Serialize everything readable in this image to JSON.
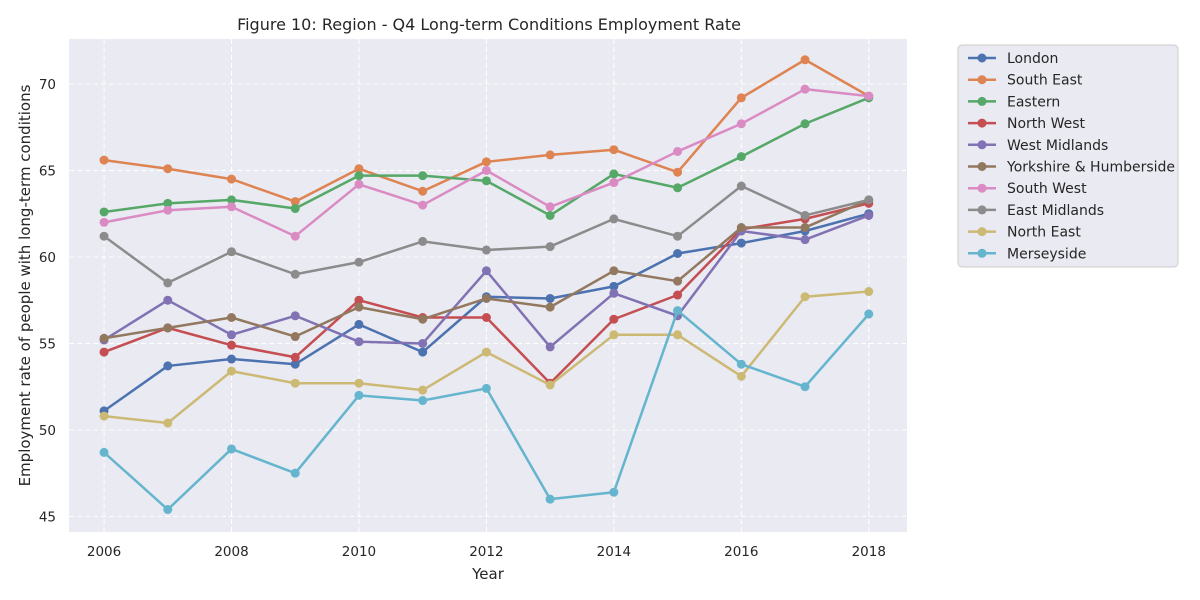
{
  "chart_data": {
    "type": "line",
    "title": "Figure 10: Region - Q4 Long-term Conditions Employment Rate",
    "xlabel": "Year",
    "ylabel": "Employment rate of people with long-term conditions",
    "x": [
      2006,
      2007,
      2008,
      2009,
      2010,
      2011,
      2012,
      2013,
      2014,
      2015,
      2016,
      2017,
      2018
    ],
    "xticks": [
      2006,
      2008,
      2010,
      2012,
      2014,
      2016,
      2018
    ],
    "yticks": [
      45,
      50,
      55,
      60,
      65,
      70
    ],
    "xlim": [
      2005.45,
      2018.6
    ],
    "ylim": [
      44.1,
      72.6
    ],
    "grid": true,
    "legend_position": "outside-right",
    "background_color": "#EAEAF2",
    "series": [
      {
        "name": "London",
        "color": "#4C72B0",
        "values": [
          51.1,
          53.7,
          54.1,
          53.8,
          56.1,
          54.5,
          57.7,
          57.6,
          58.3,
          60.2,
          60.8,
          61.5,
          62.5
        ]
      },
      {
        "name": "South East",
        "color": "#DD8452",
        "values": [
          65.6,
          65.1,
          64.5,
          63.2,
          65.1,
          63.8,
          65.5,
          65.9,
          66.2,
          64.9,
          69.2,
          71.4,
          69.3
        ]
      },
      {
        "name": "Eastern",
        "color": "#55A868",
        "values": [
          62.6,
          63.1,
          63.3,
          62.8,
          64.7,
          64.7,
          64.4,
          62.4,
          64.8,
          64.0,
          65.8,
          67.7,
          69.2
        ]
      },
      {
        "name": "North West",
        "color": "#C44E52",
        "values": [
          54.5,
          55.9,
          54.9,
          54.2,
          57.5,
          56.5,
          56.5,
          52.7,
          56.4,
          57.8,
          61.6,
          62.2,
          63.1
        ]
      },
      {
        "name": "West Midlands",
        "color": "#8172B3",
        "values": [
          55.2,
          57.5,
          55.5,
          56.6,
          55.1,
          55.0,
          59.2,
          54.8,
          57.9,
          56.6,
          61.5,
          61.0,
          62.4
        ]
      },
      {
        "name": "Yorkshire & Humberside",
        "color": "#937860",
        "values": [
          55.3,
          55.9,
          56.5,
          55.4,
          57.1,
          56.4,
          57.6,
          57.1,
          59.2,
          58.6,
          61.7,
          61.7,
          63.3
        ]
      },
      {
        "name": "South West",
        "color": "#DA8BC3",
        "values": [
          62.0,
          62.7,
          62.9,
          61.2,
          64.2,
          63.0,
          65.0,
          62.9,
          64.3,
          66.1,
          67.7,
          69.7,
          69.3
        ]
      },
      {
        "name": "East Midlands",
        "color": "#8C8C8C",
        "values": [
          61.2,
          58.5,
          60.3,
          59.0,
          59.7,
          60.9,
          60.4,
          60.6,
          62.2,
          61.2,
          64.1,
          62.4,
          63.3
        ]
      },
      {
        "name": "North East",
        "color": "#CCB974",
        "values": [
          50.8,
          50.4,
          53.4,
          52.7,
          52.7,
          52.3,
          54.5,
          52.6,
          55.5,
          55.5,
          53.1,
          57.7,
          58.0
        ]
      },
      {
        "name": "Merseyside",
        "color": "#64B5CD",
        "values": [
          48.7,
          45.4,
          48.9,
          47.5,
          52.0,
          51.7,
          52.4,
          46.0,
          46.4,
          56.9,
          53.8,
          52.5,
          56.7
        ]
      }
    ]
  }
}
